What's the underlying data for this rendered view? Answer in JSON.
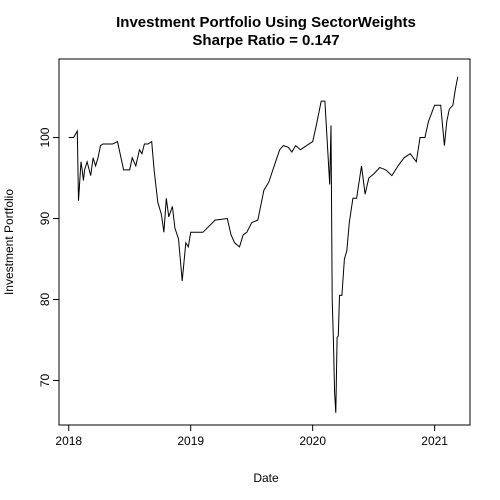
{
  "chart_data": {
    "type": "line",
    "title": "Investment Portfolio Using SectorWeights",
    "subtitle": "Sharpe Ratio = 0.147",
    "xlabel": "Date",
    "ylabel": "Investment Portfolio",
    "xlim": [
      2017.92,
      2021.29
    ],
    "ylim": [
      64.5,
      109.7
    ],
    "x_ticks": [
      2018,
      2019,
      2020,
      2021
    ],
    "x_tick_labels": [
      "2018",
      "2019",
      "2020",
      "2021"
    ],
    "y_ticks": [
      70,
      80,
      90,
      100
    ],
    "y_tick_labels": [
      "70",
      "80",
      "90",
      "100"
    ],
    "grid": false,
    "line_color": "#000000",
    "series": [
      {
        "x": [
          2018.0,
          2018.04,
          2018.07,
          2018.08,
          2018.1,
          2018.11,
          2018.12,
          2018.13,
          2018.15,
          2018.18,
          2018.2,
          2018.22,
          2018.24,
          2018.26,
          2018.28,
          2018.3,
          2018.33,
          2018.36,
          2018.4,
          2018.45,
          2018.5,
          2018.52,
          2018.55,
          2018.58,
          2018.6,
          2018.62,
          2018.65,
          2018.68,
          2018.7,
          2018.73,
          2018.76,
          2018.78,
          2018.8,
          2018.82,
          2018.85,
          2018.87,
          2018.9,
          2018.93,
          2018.96,
          2018.98,
          2019.0,
          2019.05,
          2019.1,
          2019.2,
          2019.3,
          2019.33,
          2019.36,
          2019.4,
          2019.43,
          2019.46,
          2019.5,
          2019.55,
          2019.6,
          2019.64,
          2019.7,
          2019.73,
          2019.76,
          2019.8,
          2019.83,
          2019.86,
          2019.9,
          2019.95,
          2020.0,
          2020.03,
          2020.07,
          2020.1,
          2020.14,
          2020.15,
          2020.16,
          2020.17,
          2020.18,
          2020.19,
          2020.2,
          2020.21,
          2020.22,
          2020.24,
          2020.26,
          2020.28,
          2020.3,
          2020.33,
          2020.36,
          2020.4,
          2020.43,
          2020.46,
          2020.5,
          2020.55,
          2020.6,
          2020.65,
          2020.7,
          2020.75,
          2020.8,
          2020.85,
          2020.88,
          2020.92,
          2020.95,
          2021.0,
          2021.05,
          2021.08,
          2021.1,
          2021.12,
          2021.15,
          2021.17,
          2021.19
        ],
        "y": [
          100.0,
          100.0,
          100.8,
          92.2,
          97.0,
          96.0,
          94.7,
          96.0,
          97.0,
          95.3,
          97.5,
          96.5,
          97.5,
          99.0,
          99.2,
          99.2,
          99.2,
          99.2,
          99.5,
          96.0,
          96.0,
          97.5,
          96.5,
          98.5,
          98.0,
          99.2,
          99.2,
          99.5,
          96.0,
          92.0,
          90.5,
          88.3,
          92.5,
          90.2,
          91.5,
          88.8,
          87.5,
          82.3,
          87.0,
          86.5,
          88.3,
          88.3,
          88.3,
          89.8,
          90.0,
          88.0,
          87.0,
          86.5,
          88.0,
          88.3,
          89.5,
          89.8,
          93.5,
          94.5,
          97.2,
          98.5,
          99.0,
          98.8,
          98.2,
          99.0,
          98.5,
          99.0,
          99.5,
          101.5,
          104.5,
          104.5,
          94.2,
          101.5,
          80.0,
          75.0,
          68.5,
          66.0,
          75.3,
          75.5,
          80.5,
          80.5,
          85.0,
          86.0,
          89.5,
          92.5,
          92.5,
          96.5,
          93.0,
          95.0,
          95.5,
          96.3,
          96.0,
          95.3,
          96.5,
          97.5,
          98.0,
          97.0,
          100.0,
          100.0,
          102.0,
          104.0,
          104.0,
          99.0,
          102.0,
          103.5,
          104.0,
          106.0,
          107.5
        ]
      }
    ]
  }
}
